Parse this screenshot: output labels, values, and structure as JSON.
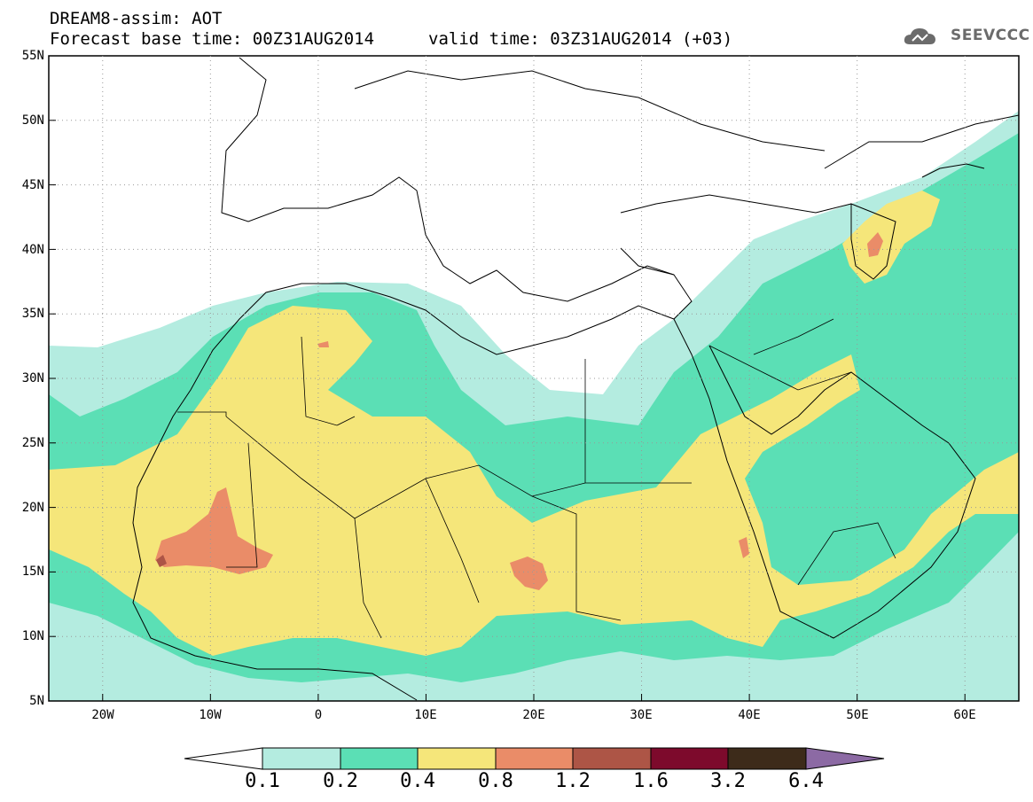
{
  "header": {
    "line1": "DREAM8-assim: AOT",
    "line2": "Forecast base time: 00Z31AUG2014",
    "valid": "valid time: 03Z31AUG2014 (+03)"
  },
  "logo": {
    "text": "SEEVCCC",
    "icon": "cloud-logo-icon"
  },
  "axes": {
    "lat_labels": [
      "55N",
      "50N",
      "45N",
      "40N",
      "35N",
      "30N",
      "25N",
      "20N",
      "15N",
      "10N",
      "5N"
    ],
    "lon_labels": [
      "20W",
      "10W",
      "0",
      "10E",
      "20E",
      "30E",
      "40E",
      "50E",
      "60E"
    ],
    "lat_range": [
      5,
      55
    ],
    "lon_range": [
      -25,
      65
    ],
    "grid": "dotted"
  },
  "colorbar": {
    "labels": [
      "0.1",
      "0.2",
      "0.4",
      "0.8",
      "1.2",
      "1.6",
      "3.2",
      "6.4"
    ],
    "colors": [
      "#ffffff",
      "#b4ece0",
      "#5bdfb5",
      "#f5e67a",
      "#ea8c68",
      "#ad5546",
      "#7d0a2c",
      "#3d2b1a",
      "#8c6aa4"
    ]
  },
  "colors": {
    "c01": "#b4ece0",
    "c02": "#5bdfb5",
    "c04": "#f5e67a",
    "c08": "#ea8c68",
    "c12": "#ad5546"
  }
}
